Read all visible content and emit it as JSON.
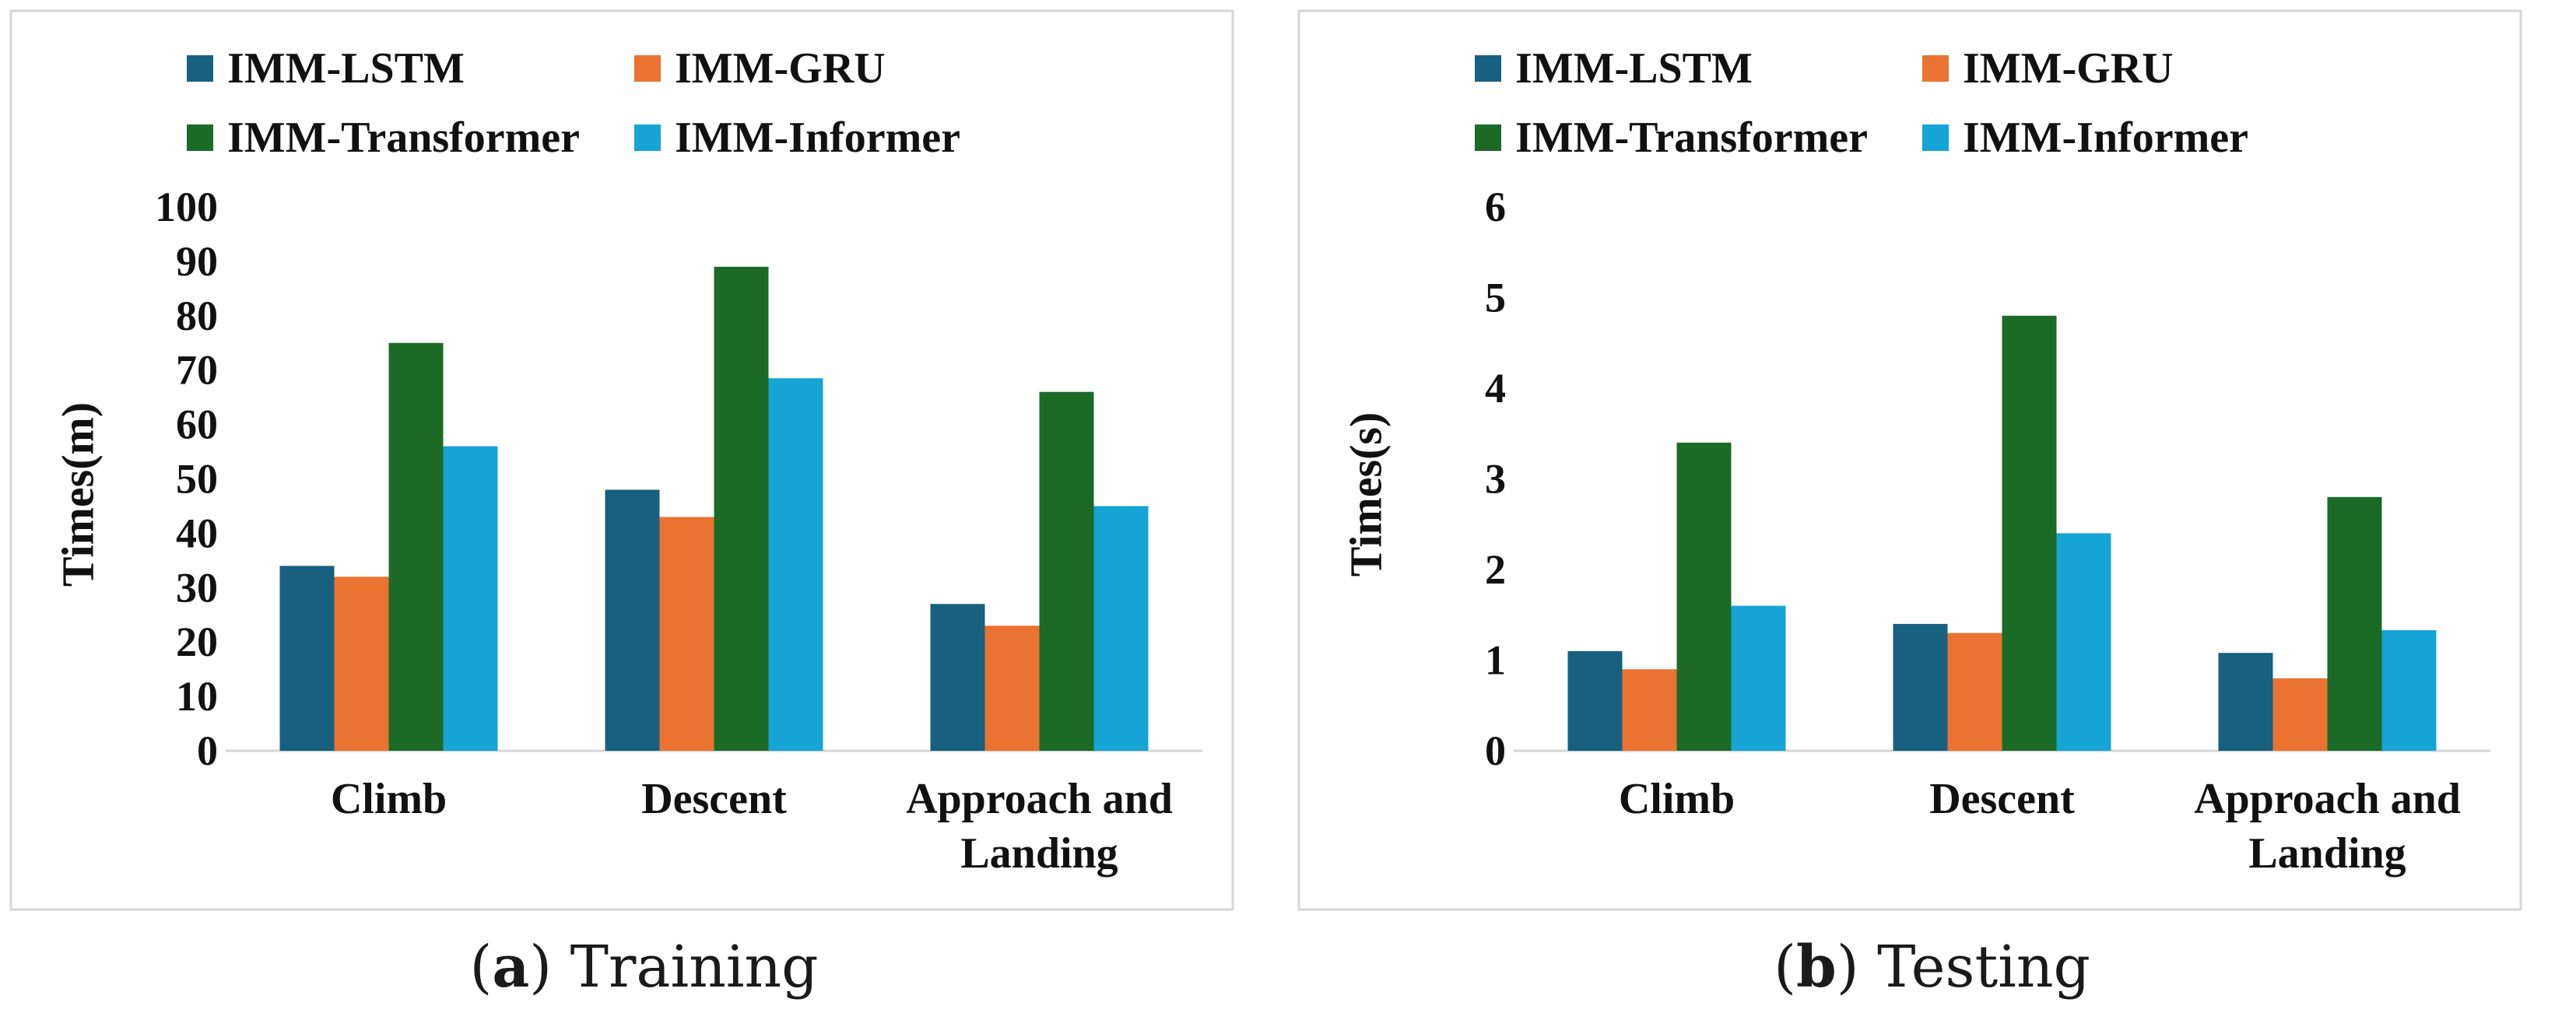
{
  "charts": [
    {
      "type": "bar",
      "ylabel": "Times(m)",
      "categories": [
        "Climb",
        "Descent",
        "Approach and Landing"
      ],
      "series": [
        {
          "name": "IMM-LSTM",
          "color": "#17607f",
          "values": [
            34,
            48,
            27
          ]
        },
        {
          "name": "IMM-GRU",
          "color": "#eb7331",
          "values": [
            32,
            43,
            23
          ]
        },
        {
          "name": "IMM-Transformer",
          "color": "#1b6b26",
          "values": [
            75,
            89,
            66
          ]
        },
        {
          "name": "IMM-Informer",
          "color": "#16a3d6",
          "values": [
            56,
            68.5,
            45
          ]
        }
      ],
      "ylim": [
        0,
        100
      ],
      "yticks": [
        0,
        10,
        20,
        30,
        40,
        50,
        60,
        70,
        80,
        90,
        100
      ],
      "caption_letter": "a",
      "caption_text": "Training"
    },
    {
      "type": "bar",
      "ylabel": "Times(s)",
      "categories": [
        "Climb",
        "Descent",
        "Approach and Landing"
      ],
      "series": [
        {
          "name": "IMM-LSTM",
          "color": "#17607f",
          "values": [
            1.1,
            1.4,
            1.08
          ]
        },
        {
          "name": "IMM-GRU",
          "color": "#eb7331",
          "values": [
            0.9,
            1.3,
            0.8
          ]
        },
        {
          "name": "IMM-Transformer",
          "color": "#1b6b26",
          "values": [
            3.4,
            4.8,
            2.8
          ]
        },
        {
          "name": "IMM-Informer",
          "color": "#16a3d6",
          "values": [
            1.6,
            2.4,
            1.33
          ]
        }
      ],
      "ylim": [
        0,
        6
      ],
      "yticks": [
        0,
        1,
        2,
        3,
        4,
        5,
        6
      ],
      "caption_letter": "b",
      "caption_text": "Testing"
    }
  ]
}
